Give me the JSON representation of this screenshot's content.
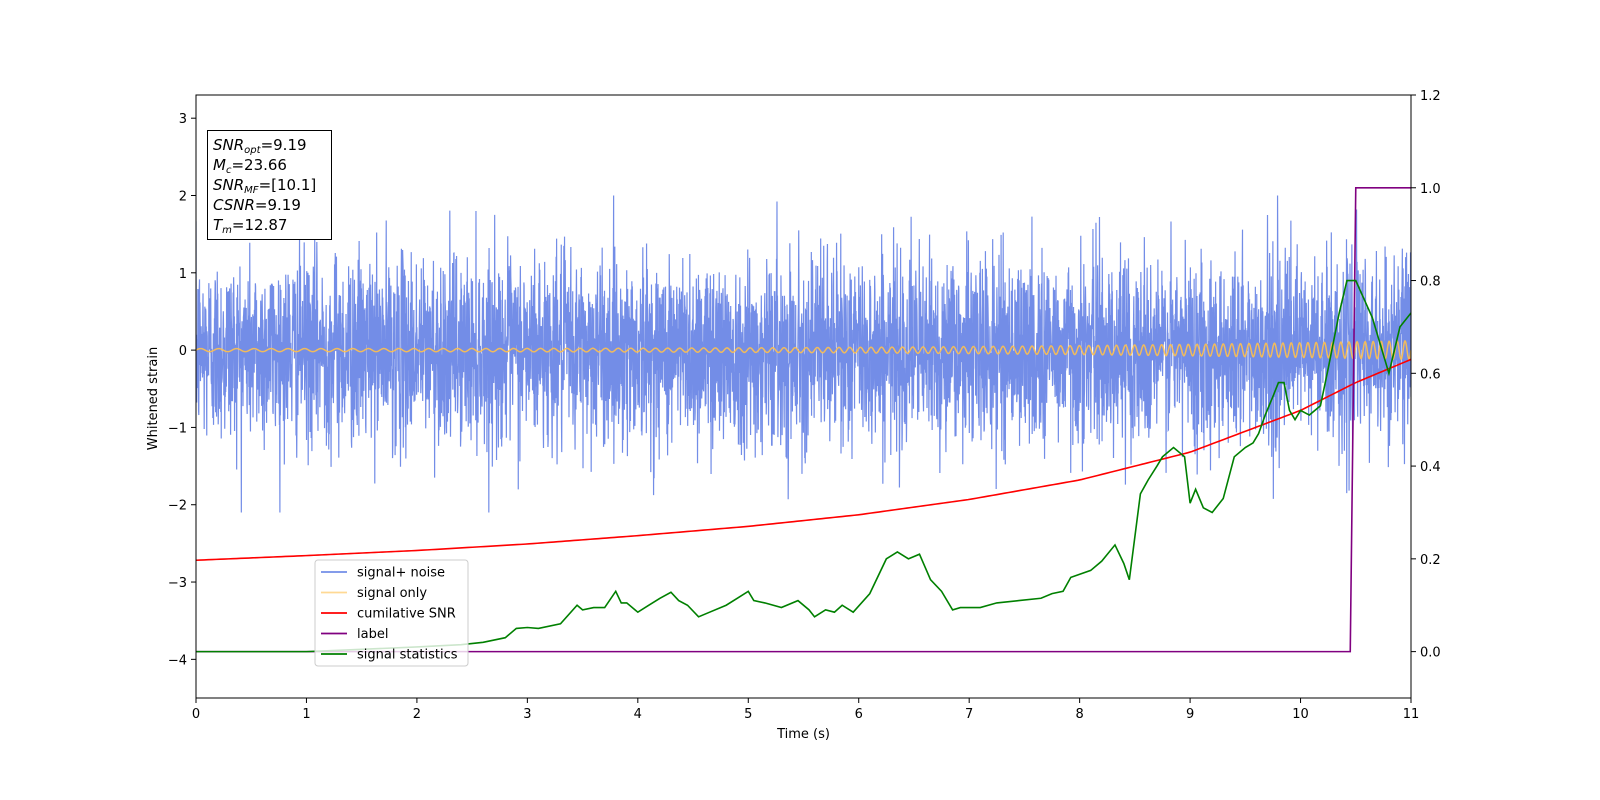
{
  "chart_data": {
    "type": "line",
    "xlabel": "Time (s)",
    "ylabel": "Whitened strain",
    "xlim": [
      0,
      11
    ],
    "ylim": [
      -4.5,
      3.3
    ],
    "y2lim": [
      -0.1,
      1.2
    ],
    "xticks": [
      "0",
      "1",
      "2",
      "3",
      "4",
      "5",
      "6",
      "7",
      "8",
      "9",
      "10",
      "11"
    ],
    "yticks": [
      "−4",
      "−3",
      "−2",
      "−1",
      "0",
      "1",
      "2",
      "3"
    ],
    "y2ticks": [
      "0.0",
      "0.2",
      "0.4",
      "0.6",
      "0.8",
      "1.0",
      "1.2"
    ],
    "legend_position": "lower-left",
    "legend": [
      "signal+ noise",
      "signal only",
      "cumilative SNR",
      "label",
      "signal statistics"
    ],
    "colors": {
      "signal_noise": "#6b87e6",
      "signal_only": "#ffc04d",
      "cumulative_snr": "#ff0000",
      "label": "#800080",
      "signal_statistics": "#008000"
    },
    "annotation": {
      "snr_opt_base": "SNR",
      "snr_opt_sub": "opt",
      "snr_opt_value": "=9.19",
      "mc_base": "M",
      "mc_sub": "c",
      "mc_value": "=23.66",
      "snr_mf_base": "SNR",
      "snr_mf_sub": "MF",
      "snr_mf_value": "=[10.1]",
      "csnr_base": "CSNR",
      "csnr_value": "=9.19",
      "tm_base": "T",
      "tm_sub": "m",
      "tm_value": "=12.87"
    },
    "series": [
      {
        "name": "signal+ noise",
        "axis": "left",
        "description_values": "white noise, std ~0.6, extremes about -2.1 to 2.0 over 0-11 s"
      },
      {
        "name": "signal only",
        "axis": "left",
        "chirp": {
          "amplitude_start": 0.02,
          "amplitude_end": 0.12,
          "freq_start_hz": 6,
          "freq_end_hz": 14
        }
      },
      {
        "name": "cumilative SNR",
        "axis": "right",
        "x": [
          0,
          1,
          2,
          3,
          4,
          5,
          6,
          7,
          8,
          9,
          10,
          10.5,
          11
        ],
        "y": [
          0.197,
          0.207,
          0.218,
          0.232,
          0.25,
          0.27,
          0.295,
          0.328,
          0.37,
          0.43,
          0.52,
          0.58,
          0.63
        ]
      },
      {
        "name": "label",
        "axis": "right",
        "x": [
          0,
          10.45,
          10.5,
          11
        ],
        "y": [
          0.0,
          0.0,
          1.0,
          1.0
        ]
      },
      {
        "name": "signal statistics",
        "axis": "right",
        "x": [
          0,
          0.5,
          1.0,
          1.5,
          2.0,
          2.4,
          2.6,
          2.8,
          2.9,
          3.0,
          3.1,
          3.3,
          3.45,
          3.5,
          3.6,
          3.7,
          3.8,
          3.85,
          3.9,
          4.0,
          4.1,
          4.2,
          4.3,
          4.37,
          4.45,
          4.55,
          4.65,
          4.8,
          4.9,
          5.0,
          5.05,
          5.15,
          5.3,
          5.45,
          5.55,
          5.6,
          5.7,
          5.78,
          5.85,
          5.95,
          6.1,
          6.25,
          6.35,
          6.45,
          6.55,
          6.65,
          6.75,
          6.85,
          6.92,
          7.1,
          7.25,
          7.45,
          7.65,
          7.75,
          7.85,
          7.92,
          8.1,
          8.2,
          8.32,
          8.4,
          8.45,
          8.55,
          8.62,
          8.7,
          8.75,
          8.85,
          8.95,
          9.0,
          9.05,
          9.12,
          9.2,
          9.3,
          9.4,
          9.5,
          9.57,
          9.62,
          9.68,
          9.75,
          9.8,
          9.85,
          9.9,
          9.95,
          10.0,
          10.08,
          10.18,
          10.25,
          10.35,
          10.42,
          10.5,
          10.65,
          10.8,
          10.9,
          11.0
        ],
        "y": [
          0.0,
          0.0,
          0.0,
          0.005,
          0.01,
          0.015,
          0.02,
          0.03,
          0.05,
          0.052,
          0.05,
          0.06,
          0.1,
          0.09,
          0.095,
          0.095,
          0.13,
          0.105,
          0.105,
          0.085,
          0.1,
          0.115,
          0.128,
          0.11,
          0.1,
          0.075,
          0.085,
          0.1,
          0.115,
          0.13,
          0.11,
          0.105,
          0.095,
          0.11,
          0.09,
          0.075,
          0.09,
          0.085,
          0.1,
          0.085,
          0.125,
          0.2,
          0.215,
          0.2,
          0.21,
          0.155,
          0.13,
          0.09,
          0.095,
          0.095,
          0.105,
          0.11,
          0.115,
          0.125,
          0.13,
          0.16,
          0.175,
          0.195,
          0.23,
          0.19,
          0.155,
          0.34,
          0.37,
          0.4,
          0.42,
          0.44,
          0.42,
          0.32,
          0.35,
          0.31,
          0.3,
          0.33,
          0.42,
          0.44,
          0.45,
          0.47,
          0.51,
          0.55,
          0.58,
          0.58,
          0.52,
          0.5,
          0.52,
          0.51,
          0.53,
          0.61,
          0.73,
          0.8,
          0.8,
          0.72,
          0.6,
          0.7,
          0.73
        ]
      }
    ]
  }
}
